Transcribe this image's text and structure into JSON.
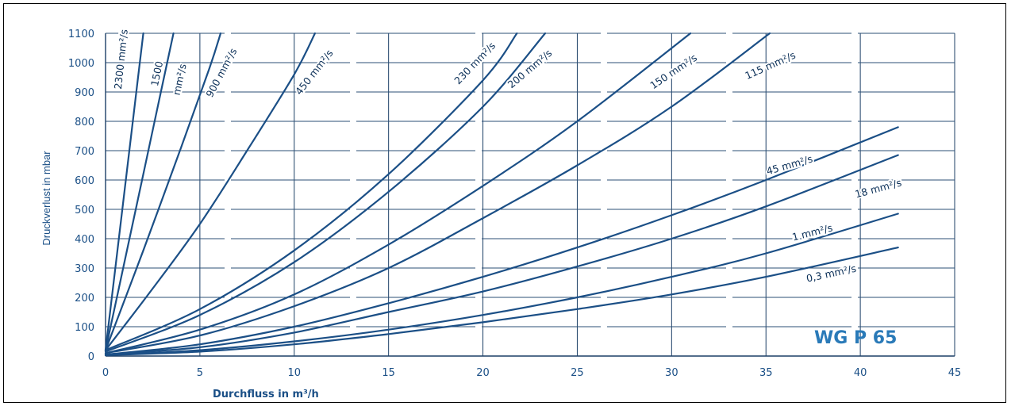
{
  "chart_data": {
    "type": "line",
    "badge": "WG P 65",
    "xlabel": "Durchfluss in m³/h",
    "ylabel": "Druckverlust in mbar",
    "xlim": [
      0,
      45
    ],
    "ylim": [
      0,
      1100
    ],
    "x_ticks": [
      "0",
      "5",
      "10",
      "15",
      "20",
      "25",
      "30",
      "35",
      "40",
      "45"
    ],
    "y_ticks": [
      "0",
      "100",
      "200",
      "300",
      "400",
      "500",
      "600",
      "700",
      "800",
      "900",
      "1000",
      "1100"
    ],
    "grid": true,
    "line_color": "#1b4f86",
    "series": [
      {
        "name": "2300 mm²/s",
        "x": [
          0,
          0.5,
          1.0,
          1.5,
          2.0
        ],
        "y": [
          20,
          290,
          560,
          830,
          1100
        ]
      },
      {
        "name": "1500 mm²/s",
        "x": [
          0,
          1.0,
          2.0,
          3.0,
          3.6
        ],
        "y": [
          20,
          320,
          620,
          920,
          1100
        ]
      },
      {
        "name": "900 mm²/s",
        "x": [
          0,
          2.0,
          4.0,
          5.5,
          6.1
        ],
        "y": [
          20,
          360,
          710,
          980,
          1100
        ]
      },
      {
        "name": "450 mm²/s",
        "x": [
          0,
          2.5,
          5.0,
          7.5,
          10.0,
          11.1
        ],
        "y": [
          20,
          230,
          450,
          700,
          960,
          1100
        ]
      },
      {
        "name": "230 mm²/s",
        "x": [
          0,
          5.0,
          10.0,
          15.0,
          20.0,
          21.8
        ],
        "y": [
          20,
          160,
          360,
          620,
          940,
          1100
        ]
      },
      {
        "name": "200 mm²/s",
        "x": [
          0,
          5.0,
          10.0,
          15.0,
          20.0,
          23.3
        ],
        "y": [
          15,
          140,
          320,
          560,
          850,
          1100
        ]
      },
      {
        "name": "150 mm²/s",
        "x": [
          0,
          5.0,
          10.0,
          15.0,
          20.0,
          25.0,
          31.0
        ],
        "y": [
          10,
          90,
          210,
          380,
          580,
          800,
          1100
        ]
      },
      {
        "name": "115 mm²/s",
        "x": [
          0,
          5.0,
          10.0,
          15.0,
          20.0,
          25.0,
          30.0,
          35.2
        ],
        "y": [
          10,
          70,
          170,
          300,
          470,
          650,
          850,
          1100
        ]
      },
      {
        "name": "45 mm²/s",
        "x": [
          0,
          5.0,
          10.0,
          15.0,
          20.0,
          25.0,
          30.0,
          35.0,
          42.0
        ],
        "y": [
          5,
          40,
          100,
          180,
          270,
          370,
          480,
          600,
          780
        ]
      },
      {
        "name": "18 mm²/s",
        "x": [
          0,
          5.0,
          10.0,
          15.0,
          20.0,
          25.0,
          30.0,
          35.0,
          42.0
        ],
        "y": [
          5,
          30,
          80,
          150,
          220,
          305,
          400,
          510,
          685
        ]
      },
      {
        "name": "1 mm²/s",
        "x": [
          0,
          5.0,
          10.0,
          15.0,
          20.0,
          25.0,
          30.0,
          35.0,
          42.0
        ],
        "y": [
          3,
          20,
          50,
          90,
          140,
          200,
          270,
          350,
          485
        ]
      },
      {
        "name": "0,3 mm²/s",
        "x": [
          0,
          5.0,
          10.0,
          15.0,
          20.0,
          25.0,
          30.0,
          35.0,
          42.0
        ],
        "y": [
          3,
          15,
          40,
          75,
          115,
          160,
          210,
          270,
          370
        ]
      }
    ],
    "curve_labels": [
      {
        "text": "2300 mm²/s",
        "x": 1.0,
        "y": 1010,
        "angle": -84
      },
      {
        "text": "1500",
        "x": 2.9,
        "y": 960,
        "angle": -78
      },
      {
        "text": "mm²/s",
        "x": 4.1,
        "y": 940,
        "angle": -78
      },
      {
        "text": "900 mm²/s",
        "x": 6.3,
        "y": 960,
        "angle": -62
      },
      {
        "text": "450 mm²/s",
        "x": 11.2,
        "y": 960,
        "angle": -52
      },
      {
        "text": "230 mm²/s",
        "x": 19.7,
        "y": 990,
        "angle": -46
      },
      {
        "text": "200 mm²/s",
        "x": 22.6,
        "y": 970,
        "angle": -40
      },
      {
        "text": "150 mm²/s",
        "x": 30.2,
        "y": 960,
        "angle": -34
      },
      {
        "text": "115 mm²/s",
        "x": 35.3,
        "y": 980,
        "angle": -24
      },
      {
        "text": "45 mm²/s",
        "x": 36.3,
        "y": 640,
        "angle": -16
      },
      {
        "text": "18 mm²/s",
        "x": 41.0,
        "y": 560,
        "angle": -15
      },
      {
        "text": "1 mm²/s",
        "x": 37.5,
        "y": 410,
        "angle": -14
      },
      {
        "text": "0,3 mm²/s",
        "x": 38.5,
        "y": 270,
        "angle": -12
      }
    ]
  }
}
